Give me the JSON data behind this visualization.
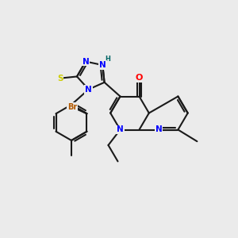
{
  "bg_color": "#ebebeb",
  "bond_color": "#1a1a1a",
  "colors": {
    "N": "#0000ff",
    "O": "#ff0000",
    "S": "#cccc00",
    "Br": "#b35900",
    "H": "#006666",
    "C": "#1a1a1a"
  }
}
